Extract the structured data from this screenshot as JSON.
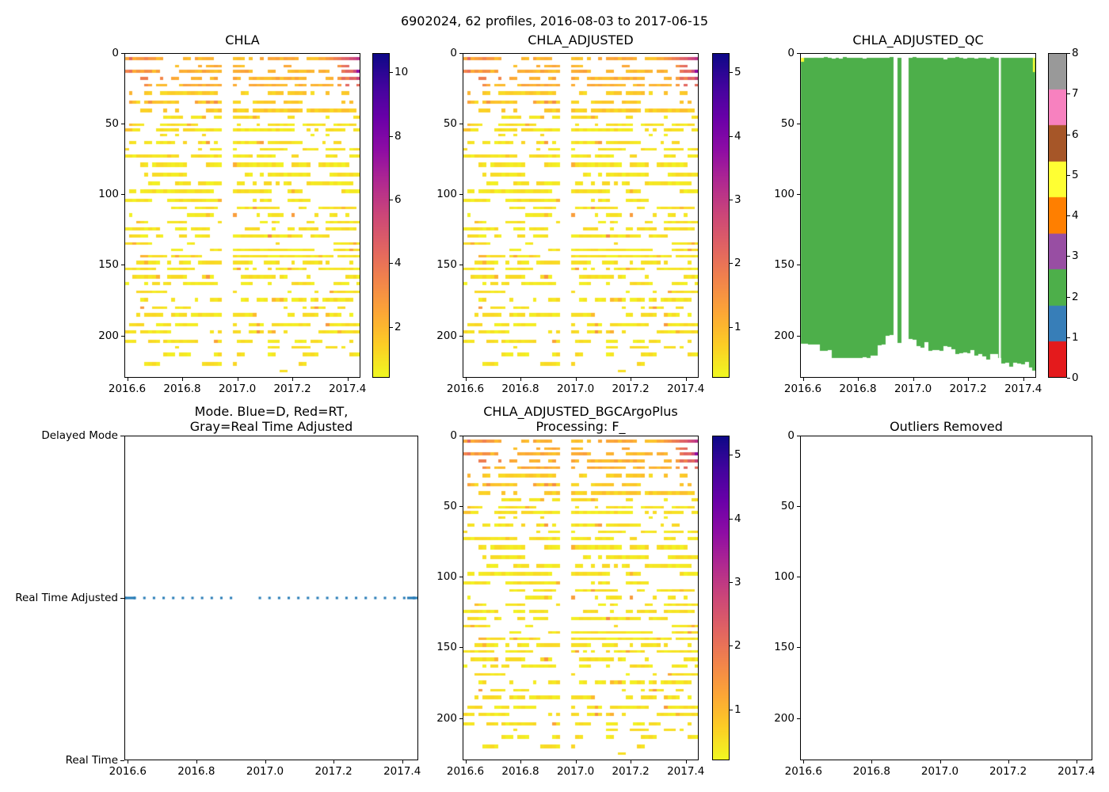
{
  "figure": {
    "suptitle": "6902024, 62 profiles, 2016-08-03 to 2017-06-15",
    "background": "#ffffff",
    "text_color": "#000000"
  },
  "axis": {
    "x_tick_labels": [
      "2016.6",
      "2016.8",
      "2017.0",
      "2017.2",
      "2017.4"
    ],
    "x_tick_values": [
      2016.6,
      2016.8,
      2017.0,
      2017.2,
      2017.4
    ],
    "xlim": [
      2016.59,
      2017.447
    ],
    "depth_tick_labels": [
      "0",
      "50",
      "100",
      "150",
      "200"
    ],
    "depth_tick_values": [
      0,
      50,
      100,
      150,
      200
    ],
    "depth_lim": [
      0,
      230
    ]
  },
  "colormaps": {
    "plasma": [
      [
        0,
        "#0d0887"
      ],
      [
        0.1,
        "#41049d"
      ],
      [
        0.2,
        "#6a00a8"
      ],
      [
        0.3,
        "#8f0da4"
      ],
      [
        0.4,
        "#b12a90"
      ],
      [
        0.5,
        "#cc4778"
      ],
      [
        0.6,
        "#e16462"
      ],
      [
        0.7,
        "#f2844b"
      ],
      [
        0.8,
        "#fca636"
      ],
      [
        0.9,
        "#fcce25"
      ],
      [
        1,
        "#f0f921"
      ]
    ],
    "qc_set1": [
      "#e41a1c",
      "#377eb8",
      "#4daf4a",
      "#984ea3",
      "#ff7f00",
      "#ffff33",
      "#a65628",
      "#f781bf",
      "#999999"
    ]
  },
  "panels": {
    "chla": {
      "title": "CHLA",
      "colorbar_tick_labels": [
        "2",
        "4",
        "6",
        "8",
        "10"
      ],
      "colorbar_tick_values": [
        2,
        4,
        6,
        8,
        10
      ],
      "vmin": 0.4,
      "vmax": 10.6
    },
    "chla_adjusted": {
      "title": "CHLA_ADJUSTED",
      "colorbar_tick_labels": [
        "1",
        "2",
        "3",
        "4",
        "5"
      ],
      "colorbar_tick_values": [
        1,
        2,
        3,
        4,
        5
      ],
      "vmin": 0.2,
      "vmax": 5.3
    },
    "qc": {
      "title": "CHLA_ADJUSTED_QC",
      "colorbar_tick_labels": [
        "0",
        "1",
        "2",
        "3",
        "4",
        "5",
        "6",
        "7",
        "8"
      ],
      "dominant_value": 2,
      "dominant_color": "#4daf4a",
      "minor_value": 5,
      "minor_color": "#ffff33"
    },
    "mode": {
      "title_line1": "Mode. Blue=D, Red=RT,",
      "title_line2": "Gray=Real Time Adjusted",
      "ytick_labels": [
        "Delayed Mode",
        "Real Time Adjusted",
        "Real Time"
      ],
      "line_color": "#1f77b4",
      "current_mode": "Real Time Adjusted"
    },
    "bgc": {
      "title_line1": "CHLA_ADJUSTED_BGCArgoPlus",
      "title_line2": "Processing: F_",
      "colorbar_tick_labels": [
        "1",
        "2",
        "3",
        "4",
        "5"
      ],
      "colorbar_tick_values": [
        1,
        2,
        3,
        4,
        5
      ],
      "vmin": 0.2,
      "vmax": 5.3
    },
    "outliers": {
      "title": "Outliers Removed"
    }
  },
  "chart_data": [
    {
      "id": "chla",
      "type": "heatmap",
      "title": "CHLA",
      "x_range": [
        2016.592,
        2017.448
      ],
      "n_profiles": 62,
      "profile_interval_yr": 0.014033,
      "depth_range_m": [
        0,
        230
      ],
      "data_bottom_m": 227,
      "colormap": "plasma_r",
      "value_range": [
        0.4,
        10.6
      ],
      "typical_background_value": 1.0,
      "surface_values": [
        2,
        4
      ],
      "surface_peak_value": 10.5,
      "surface_peak_location": {
        "x": 2017.44,
        "depth_m": 12
      },
      "data_gap_x": [
        2016.94,
        2016.99
      ],
      "pattern": "sparse horizontal stripes of low (yellow) chlorophyll every ~5 m; orange 2-4 in top 20 m; magenta-to-navy up to ~10.5 at far right (spring 2017) surface"
    },
    {
      "id": "chla_adjusted",
      "type": "heatmap",
      "title": "CHLA_ADJUSTED",
      "x_range": [
        2016.592,
        2017.448
      ],
      "n_profiles": 62,
      "depth_range_m": [
        0,
        230
      ],
      "colormap": "plasma_r",
      "value_range": [
        0.2,
        5.3
      ],
      "typical_background_value": 0.5,
      "surface_peak_value": 5.25,
      "data_gap_x": [
        2016.94,
        2016.99
      ],
      "pattern": "same stripe pattern as CHLA at half the value scale"
    },
    {
      "id": "chla_adjusted_qc",
      "type": "heatmap",
      "title": "CHLA_ADJUSTED_QC",
      "x_range": [
        2016.592,
        2017.448
      ],
      "n_profiles": 62,
      "depth_range_m": [
        0,
        230
      ],
      "categories": [
        0,
        1,
        2,
        3,
        4,
        5,
        6,
        7,
        8
      ],
      "category_colors": [
        "#e41a1c",
        "#377eb8",
        "#4daf4a",
        "#984ea3",
        "#ff7f00",
        "#ffff33",
        "#a65628",
        "#f781bf",
        "#999999"
      ],
      "dominant_category": 2,
      "coverage_top_m": 3,
      "coverage_bottom_m": [
        190,
        227
      ],
      "minor_category_5_locations": [
        {
          "x": 2016.592,
          "depth_m": [
            3,
            6
          ]
        },
        {
          "x": 2017.448,
          "depth_m": [
            3,
            13
          ]
        }
      ],
      "white_gaps_x": [
        [
          2016.93,
          2016.99
        ],
        [
          2017.31,
          2017.32
        ]
      ],
      "pattern": "almost all profiles flagged QC=2 (green) from ~3 m down to ragged bottom 190-227 m; tiny QC=5 (yellow) marks at first and last profile"
    },
    {
      "id": "mode",
      "type": "scatter",
      "title": "Mode. Blue=D, Red=RT, Gray=Real Time Adjusted",
      "x_range": [
        2016.592,
        2017.448
      ],
      "n_points": 62,
      "y_categories": [
        "Real Time",
        "Real Time Adjusted",
        "Delayed Mode"
      ],
      "series": [
        {
          "name": "mode",
          "color": "#1f77b4",
          "style": "dotted",
          "value": "Real Time Adjusted",
          "constant": true,
          "gap_x": [
            2016.94,
            2016.99
          ]
        }
      ]
    },
    {
      "id": "bgc",
      "type": "heatmap",
      "title": "CHLA_ADJUSTED_BGCArgoPlus Processing: F_",
      "x_range": [
        2016.592,
        2017.448
      ],
      "n_profiles": 62,
      "depth_range_m": [
        0,
        230
      ],
      "colormap": "plasma_r",
      "value_range": [
        0.2,
        5.3
      ],
      "typical_background_value": 0.5,
      "surface_peak_value": 5.25,
      "data_gap_x": [
        2016.94,
        2016.99
      ],
      "pattern": "identical to CHLA_ADJUSTED"
    },
    {
      "id": "outliers_removed",
      "type": "empty",
      "title": "Outliers Removed",
      "points": []
    }
  ]
}
